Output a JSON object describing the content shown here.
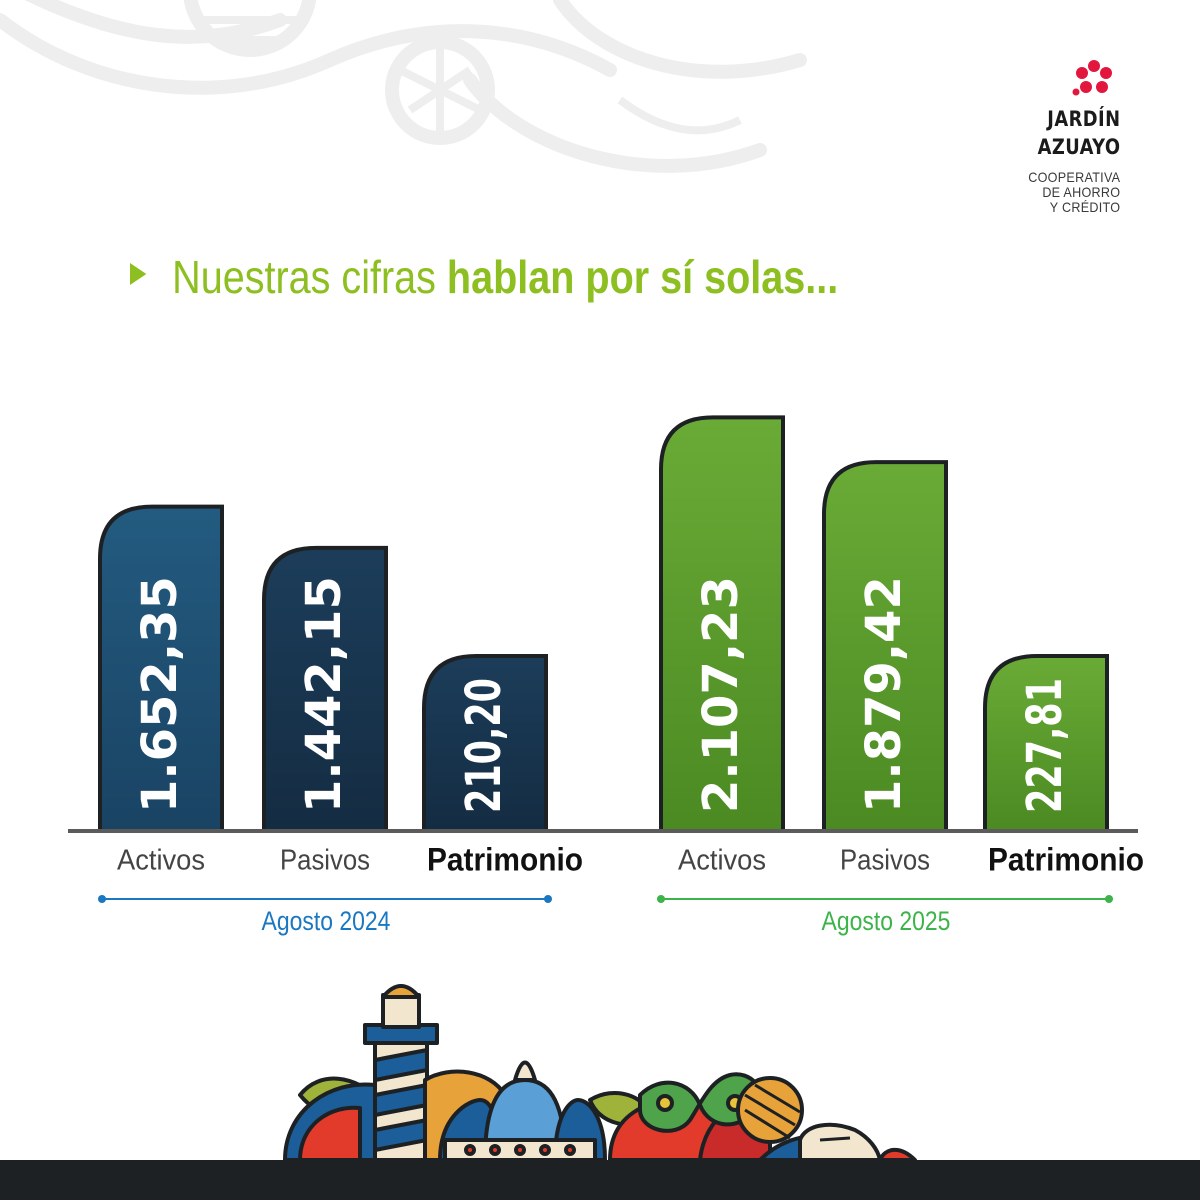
{
  "brand": {
    "name_line1": "JARDÍN",
    "name_line2": "AZUAYO",
    "sub_line1": "COOPERATIVA",
    "sub_line2": "DE AHORRO",
    "sub_line3": "Y CRÉDITO",
    "flower_color": "#e3173e"
  },
  "headline": {
    "normal": "Nuestras cifras ",
    "bold": "hablan por sí solas...",
    "color": "#8cbf1f"
  },
  "colors": {
    "group_2024_bar": "#1f4d6f",
    "group_2024_bar_dark": "#16324a",
    "group_2025_bar": "#5f9e2d",
    "group_2025_bar_dark": "#4f8b23",
    "group_2024_accent": "#1a78c2",
    "group_2025_accent": "#3cb44a",
    "category_text": "#444444",
    "category_bold_text": "#111111"
  },
  "chart_data": {
    "type": "bar",
    "title": "",
    "groups": [
      {
        "name": "Agosto 2024",
        "categories": [
          "Activos",
          "Pasivos",
          "Patrimonio"
        ],
        "values": [
          1652.35,
          1442.15,
          210.2
        ],
        "labels": [
          "1.652,35",
          "1.442,15",
          "210,20"
        ]
      },
      {
        "name": "Agosto 2025",
        "categories": [
          "Activos",
          "Pasivos",
          "Patrimonio"
        ],
        "values": [
          2107.23,
          1879.42,
          227.81
        ],
        "labels": [
          "2.107,23",
          "1.879,42",
          "227,81"
        ]
      }
    ],
    "bold_category": "Patrimonio",
    "value_labels_rotated": true,
    "grid": false,
    "legend": "none"
  }
}
